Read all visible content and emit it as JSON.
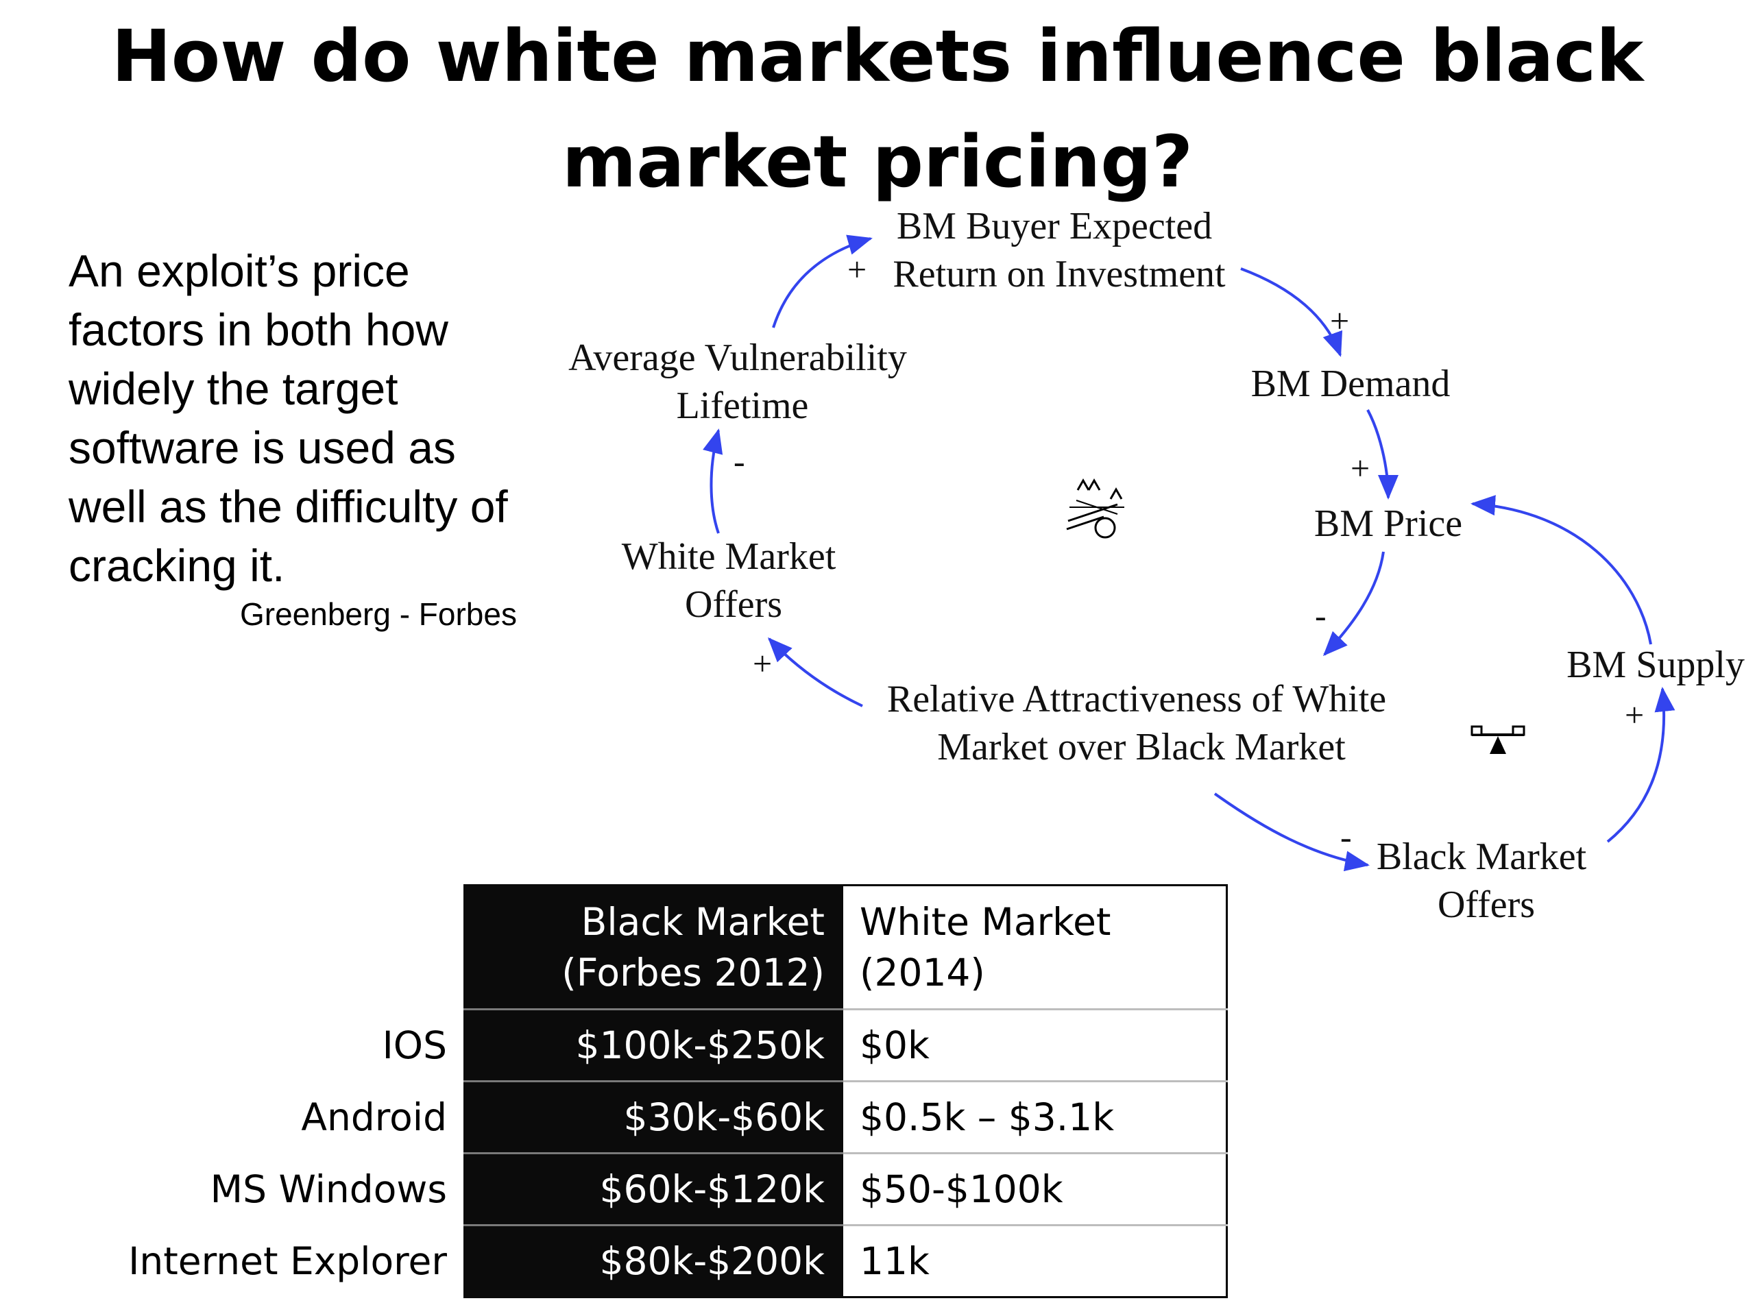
{
  "title": "How do white markets influence black market pricing?",
  "quote": {
    "text": "An exploit’s price factors in both how widely the target software is used as well as the difficulty of cracking it.",
    "source": "Greenberg - Forbes"
  },
  "diagram": {
    "nodes": {
      "bm_buyer_roi": [
        "BM Buyer Expected",
        "Return on Investment"
      ],
      "bm_demand": "BM Demand",
      "bm_price": "BM Price",
      "bm_supply": "BM Supply",
      "relative_attractiveness": [
        "Relative Attractiveness of White",
        "Market over Black Market"
      ],
      "black_market_offers": [
        "Black Market",
        "Offers"
      ],
      "white_market_offers": [
        "White Market",
        "Offers"
      ],
      "avg_vuln_lifetime": [
        "Average Vulnerability",
        "Lifetime"
      ]
    },
    "polarities": {
      "lifetime_to_roi": "+",
      "roi_to_demand": "+",
      "demand_to_price": "+",
      "price_to_attractiveness": "-",
      "attractiveness_to_white_offers": "+",
      "white_offers_to_lifetime": "-",
      "attractiveness_to_black_offers": "-",
      "black_offers_to_supply": "+"
    },
    "icons": [
      "reinforcing-loop-icon",
      "balancing-loop-icon"
    ],
    "arrow_color": "#3344ee"
  },
  "table": {
    "headers": {
      "black_market": [
        "Black Market",
        "(Forbes 2012)"
      ],
      "white_market": [
        "White Market",
        "(2014)"
      ]
    },
    "rows": [
      {
        "label": "IOS",
        "black": "$100k-$250k",
        "white": "$0k"
      },
      {
        "label": "Android",
        "black": "$30k-$60k",
        "white": "$0.5k – $3.1k"
      },
      {
        "label": "MS Windows",
        "black": "$60k-$120k",
        "white": "$50-$100k"
      },
      {
        "label": "Internet Explorer",
        "black": "$80k-$200k",
        "white": "11k"
      }
    ]
  }
}
